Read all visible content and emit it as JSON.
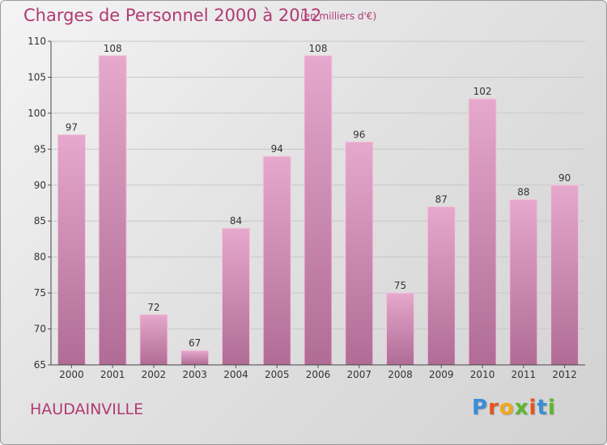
{
  "header": {
    "title": "Charges de Personnel 2000 à 2012",
    "subtitle": "(en milliers d'€)"
  },
  "footer": {
    "commune": "HAUDAINVILLE",
    "logo": "Proxiti"
  },
  "colors": {
    "accent": "#b03a72",
    "bar_top": "#e6a8cc",
    "bar_bottom": "#b06c95",
    "logo_letters": [
      "#3a8ed8",
      "#e8541c",
      "#f0a81c",
      "#5cb82c",
      "#e8541c",
      "#3a8ed8",
      "#5cb82c"
    ]
  },
  "chart_data": {
    "type": "bar",
    "title": "Charges de Personnel 2000 à 2012",
    "subtitle": "(en milliers d'€)",
    "xlabel": "",
    "ylabel": "",
    "categories": [
      "2000",
      "2001",
      "2002",
      "2003",
      "2004",
      "2005",
      "2006",
      "2007",
      "2008",
      "2009",
      "2010",
      "2011",
      "2012"
    ],
    "values": [
      97,
      108,
      72,
      67,
      84,
      94,
      108,
      96,
      75,
      87,
      102,
      88,
      90
    ],
    "ylim": [
      65,
      110
    ],
    "yticks": [
      65,
      70,
      75,
      80,
      85,
      90,
      95,
      100,
      105,
      110
    ],
    "grid": true,
    "data_labels": true
  }
}
